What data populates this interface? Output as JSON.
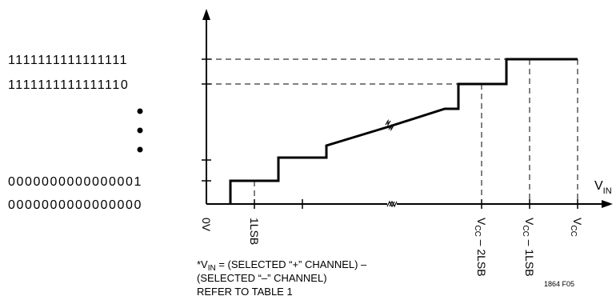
{
  "codes": {
    "top": "1111111111111111",
    "second": "1111111111111110",
    "one": "0000000000000001",
    "zero": "0000000000000000"
  },
  "axis": {
    "x_main": "V",
    "x_sub": "IN"
  },
  "ticks": {
    "zero": "0V",
    "lsb": "1LSB",
    "vcc2_main": "V",
    "vcc2_sub": "CC",
    "vcc2_rest": " – 2LSB",
    "vcc1_main": "V",
    "vcc1_sub": "CC",
    "vcc1_rest": " – 1LSB",
    "vcc_main": "V",
    "vcc_sub": "CC"
  },
  "note": {
    "prefix": "*V",
    "sub": "IN",
    "line1_rest": " = (SELECTED “+” CHANNEL) –",
    "line2": " (SELECTED “–” CHANNEL)",
    "line3": " REFER TO TABLE 1"
  },
  "figure_id": "1864 F05"
}
